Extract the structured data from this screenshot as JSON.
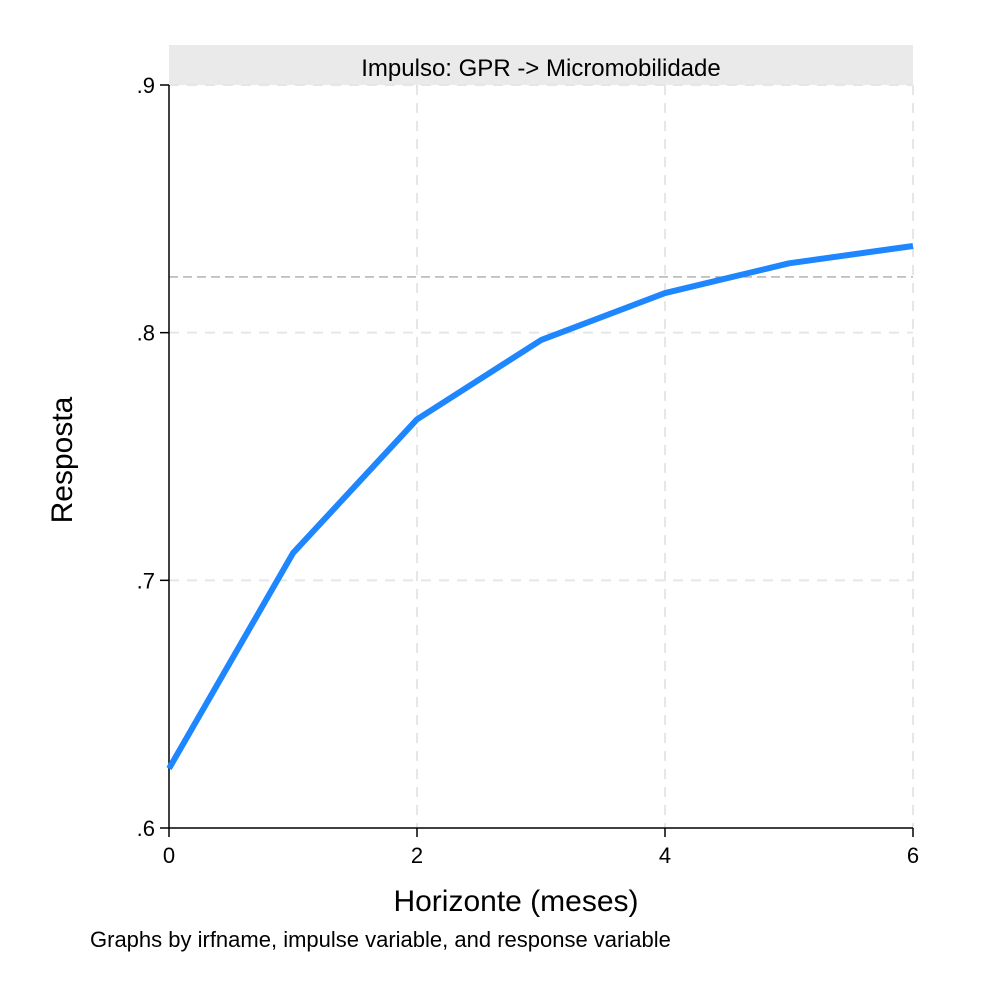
{
  "chart_data": {
    "type": "line",
    "panel_title": "Impulso: GPR -> Micromobilidade",
    "xlabel": "Horizonte (meses)",
    "ylabel": "Resposta",
    "note": "Graphs by irfname, impulse variable, and response variable",
    "xlim": [
      0,
      6
    ],
    "ylim": [
      0.6,
      0.9
    ],
    "x_ticks": [
      0,
      2,
      4,
      6
    ],
    "x_tick_labels": [
      "0",
      "2",
      "4",
      "6"
    ],
    "y_ticks": [
      0.6,
      0.7,
      0.8,
      0.9
    ],
    "y_tick_labels": [
      ".6",
      ".7",
      ".8",
      ".9"
    ],
    "grid": true,
    "reference_line_y": 0.8225,
    "series": [
      {
        "color": "#1e87ff",
        "x": [
          0,
          1,
          2,
          3,
          4,
          5,
          6
        ],
        "values": [
          0.624,
          0.711,
          0.765,
          0.797,
          0.816,
          0.828,
          0.835
        ]
      }
    ]
  }
}
